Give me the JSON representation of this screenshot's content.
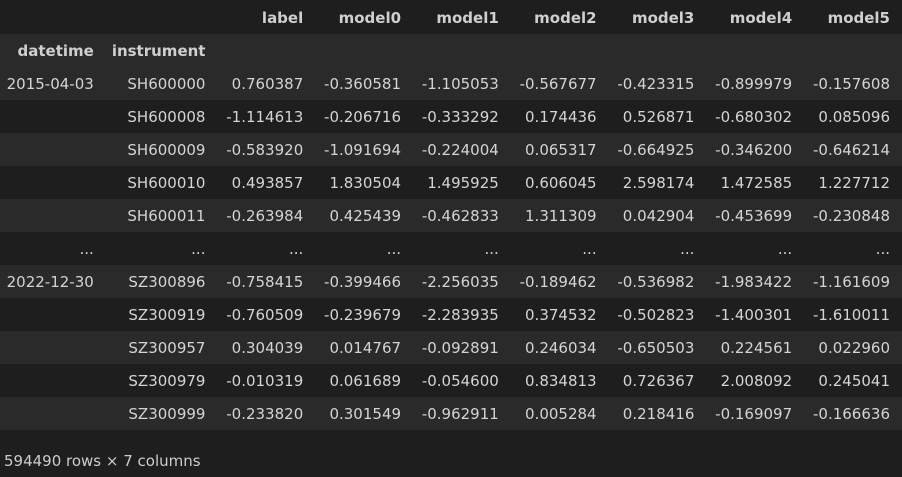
{
  "table": {
    "columns": [
      "label",
      "model0",
      "model1",
      "model2",
      "model3",
      "model4",
      "model5"
    ],
    "index_names": [
      "datetime",
      "instrument"
    ],
    "rows": [
      {
        "datetime": "2015-04-03",
        "instrument": "SH600000",
        "values": [
          "0.760387",
          "-0.360581",
          "-1.105053",
          "-0.567677",
          "-0.423315",
          "-0.899979",
          "-0.157608"
        ]
      },
      {
        "datetime": "",
        "instrument": "SH600008",
        "values": [
          "-1.114613",
          "-0.206716",
          "-0.333292",
          "0.174436",
          "0.526871",
          "-0.680302",
          "0.085096"
        ]
      },
      {
        "datetime": "",
        "instrument": "SH600009",
        "values": [
          "-0.583920",
          "-1.091694",
          "-0.224004",
          "0.065317",
          "-0.664925",
          "-0.346200",
          "-0.646214"
        ]
      },
      {
        "datetime": "",
        "instrument": "SH600010",
        "values": [
          "0.493857",
          "1.830504",
          "1.495925",
          "0.606045",
          "2.598174",
          "1.472585",
          "1.227712"
        ]
      },
      {
        "datetime": "",
        "instrument": "SH600011",
        "values": [
          "-0.263984",
          "0.425439",
          "-0.462833",
          "1.311309",
          "0.042904",
          "-0.453699",
          "-0.230848"
        ]
      },
      {
        "datetime": "...",
        "instrument": "...",
        "values": [
          "...",
          "...",
          "...",
          "...",
          "...",
          "...",
          "..."
        ]
      },
      {
        "datetime": "2022-12-30",
        "instrument": "SZ300896",
        "values": [
          "-0.758415",
          "-0.399466",
          "-2.256035",
          "-0.189462",
          "-0.536982",
          "-1.983422",
          "-1.161609"
        ]
      },
      {
        "datetime": "",
        "instrument": "SZ300919",
        "values": [
          "-0.760509",
          "-0.239679",
          "-2.283935",
          "0.374532",
          "-0.502823",
          "-1.400301",
          "-1.610011"
        ]
      },
      {
        "datetime": "",
        "instrument": "SZ300957",
        "values": [
          "0.304039",
          "0.014767",
          "-0.092891",
          "0.246034",
          "-0.650503",
          "0.224561",
          "0.022960"
        ]
      },
      {
        "datetime": "",
        "instrument": "SZ300979",
        "values": [
          "-0.010319",
          "0.061689",
          "-0.054600",
          "0.834813",
          "0.726367",
          "2.008092",
          "0.245041"
        ]
      },
      {
        "datetime": "",
        "instrument": "SZ300999",
        "values": [
          "-0.233820",
          "0.301549",
          "-0.962911",
          "0.005284",
          "0.218416",
          "-0.169097",
          "-0.166636"
        ]
      }
    ]
  },
  "footer": {
    "summary": "594490 rows × 7 columns"
  },
  "colors": {
    "background": "#1e1e1e",
    "stripe": "#2a2a2a",
    "text": "#cccccc"
  }
}
